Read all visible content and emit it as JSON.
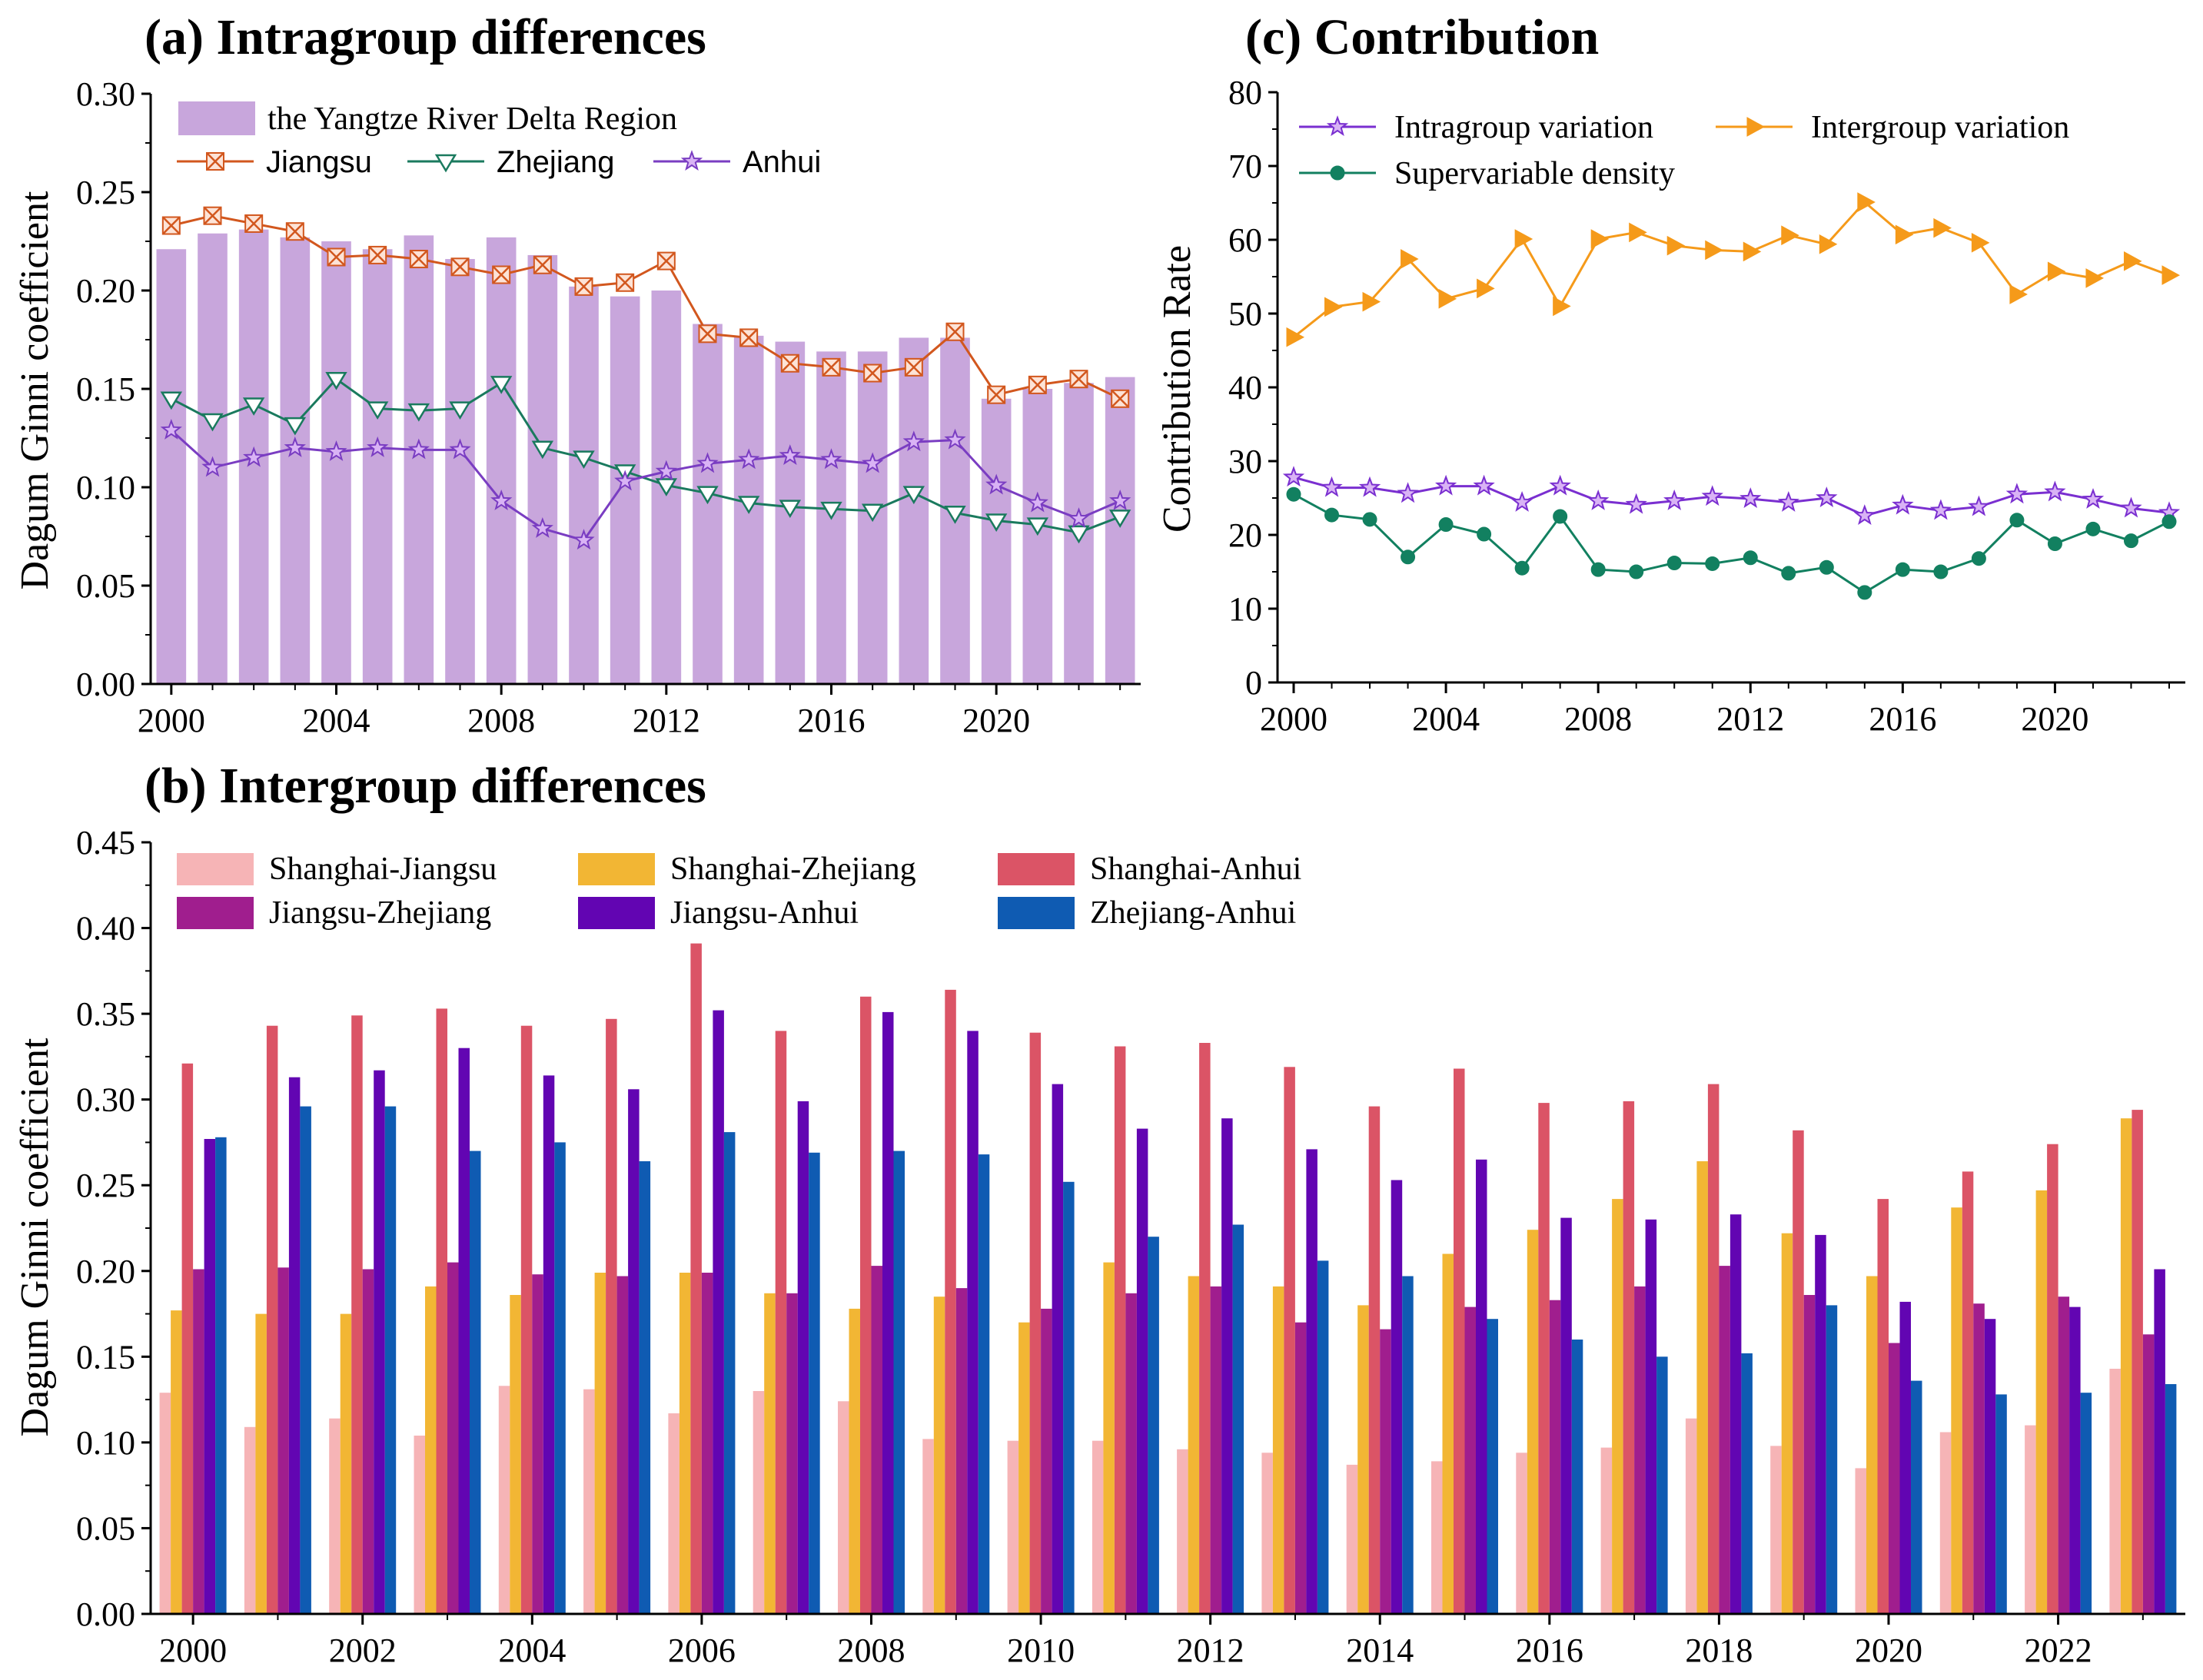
{
  "chart_data": [
    {
      "id": "a",
      "type": "bar+line",
      "title": "(a) Intragroup differences",
      "xlabel": "",
      "ylabel": "Dagum Ginni coefficient",
      "ylim": [
        0,
        0.3
      ],
      "yticks": [
        "0.00",
        "0.05",
        "0.10",
        "0.15",
        "0.20",
        "0.25",
        "0.30"
      ],
      "xticks": [
        "2000",
        "2004",
        "2008",
        "2012",
        "2016",
        "2020"
      ],
      "years": [
        2000,
        2001,
        2002,
        2003,
        2004,
        2005,
        2006,
        2007,
        2008,
        2009,
        2010,
        2011,
        2012,
        2013,
        2014,
        2015,
        2016,
        2017,
        2018,
        2019,
        2020,
        2021,
        2022,
        2023
      ],
      "bar_series": {
        "name": "the Yangtze River Delta Region",
        "color": "#c8a6dc",
        "values": [
          0.221,
          0.229,
          0.231,
          0.227,
          0.225,
          0.221,
          0.228,
          0.216,
          0.227,
          0.218,
          0.202,
          0.197,
          0.2,
          0.183,
          0.177,
          0.174,
          0.169,
          0.169,
          0.176,
          0.176,
          0.145,
          0.15,
          0.153,
          0.156
        ]
      },
      "line_series": [
        {
          "name": "Jiangsu",
          "color": "#d2571e",
          "marker": "cross",
          "values": [
            0.233,
            0.238,
            0.234,
            0.23,
            0.217,
            0.218,
            0.216,
            0.212,
            0.208,
            0.213,
            0.202,
            0.204,
            0.215,
            0.178,
            0.176,
            0.163,
            0.161,
            0.158,
            0.161,
            0.179,
            0.147,
            0.152,
            0.155,
            0.145
          ]
        },
        {
          "name": "Zhejiang",
          "color": "#1a7a5e",
          "marker": "triangle-down",
          "values": [
            0.145,
            0.134,
            0.142,
            0.132,
            0.155,
            0.14,
            0.139,
            0.14,
            0.153,
            0.12,
            0.115,
            0.108,
            0.101,
            0.097,
            0.092,
            0.09,
            0.089,
            0.088,
            0.097,
            0.087,
            0.083,
            0.081,
            0.077,
            0.085
          ]
        },
        {
          "name": "Anhui",
          "color": "#7a3dc2",
          "marker": "star",
          "values": [
            0.129,
            0.11,
            0.115,
            0.12,
            0.118,
            0.12,
            0.119,
            0.119,
            0.093,
            0.079,
            0.073,
            0.103,
            0.108,
            0.112,
            0.114,
            0.116,
            0.114,
            0.112,
            0.123,
            0.124,
            0.101,
            0.092,
            0.084,
            0.093
          ]
        }
      ]
    },
    {
      "id": "c",
      "type": "line",
      "title": "(c) Contribution",
      "xlabel": "",
      "ylabel": "Contribution Rate",
      "ylim": [
        0,
        80
      ],
      "yticks": [
        "0",
        "10",
        "20",
        "30",
        "40",
        "50",
        "60",
        "70",
        "80"
      ],
      "xticks": [
        "2000",
        "2004",
        "2008",
        "2012",
        "2016",
        "2020"
      ],
      "years": [
        2000,
        2001,
        2002,
        2003,
        2004,
        2005,
        2006,
        2007,
        2008,
        2009,
        2010,
        2011,
        2012,
        2013,
        2014,
        2015,
        2016,
        2017,
        2018,
        2019,
        2020,
        2021,
        2022,
        2023
      ],
      "series": [
        {
          "name": "Intragroup variation",
          "color": "#7a2fd0",
          "marker": "star",
          "values": [
            27.8,
            26.4,
            26.4,
            25.6,
            26.6,
            26.6,
            24.4,
            26.6,
            24.6,
            24.1,
            24.6,
            25.2,
            24.9,
            24.4,
            25.0,
            22.6,
            24.0,
            23.3,
            23.8,
            25.5,
            25.8,
            24.8,
            23.6,
            23.0
          ]
        },
        {
          "name": "Intergroup variation",
          "color": "#f59a1a",
          "marker": "triangle-right",
          "values": [
            46.8,
            50.9,
            51.6,
            57.4,
            52.0,
            53.4,
            60.1,
            51.0,
            60.1,
            61.0,
            59.2,
            58.6,
            58.4,
            60.6,
            59.4,
            65.1,
            60.7,
            61.6,
            59.6,
            52.6,
            55.7,
            54.8,
            57.1,
            55.2
          ]
        },
        {
          "name": "Supervariable density",
          "color": "#128060",
          "marker": "circle",
          "values": [
            25.5,
            22.7,
            22.1,
            17.0,
            21.4,
            20.1,
            15.5,
            22.5,
            15.3,
            15.0,
            16.2,
            16.1,
            16.9,
            14.8,
            15.6,
            12.2,
            15.3,
            15.0,
            16.8,
            22.0,
            18.8,
            20.8,
            19.2,
            21.8
          ]
        }
      ]
    },
    {
      "id": "b",
      "type": "bar",
      "title": "(b) Intergroup differences",
      "xlabel": "",
      "ylabel": "Dagum Ginni coefficient",
      "ylim": [
        0,
        0.45
      ],
      "yticks": [
        "0.00",
        "0.05",
        "0.10",
        "0.15",
        "0.20",
        "0.25",
        "0.30",
        "0.35",
        "0.40",
        "0.45"
      ],
      "xticks": [
        "2000",
        "2002",
        "2004",
        "2006",
        "2008",
        "2010",
        "2012",
        "2014",
        "2016",
        "2018",
        "2020",
        "2022"
      ],
      "categories": [
        "2000",
        "2001",
        "2002",
        "2003",
        "2004",
        "2005",
        "2006",
        "2007",
        "2008",
        "2009",
        "2010",
        "2011",
        "2012",
        "2013",
        "2014",
        "2015",
        "2016",
        "2017",
        "2018",
        "2019",
        "2020",
        "2021",
        "2022",
        "2023"
      ],
      "series": [
        {
          "name": "Shanghai-Jiangsu",
          "color": "#f6b4b6",
          "values": [
            0.129,
            0.109,
            0.114,
            0.104,
            0.133,
            0.131,
            0.117,
            0.13,
            0.124,
            0.102,
            0.101,
            0.101,
            0.096,
            0.094,
            0.087,
            0.089,
            0.094,
            0.097,
            0.114,
            0.098,
            0.085,
            0.106,
            0.11,
            0.143
          ]
        },
        {
          "name": "Shanghai-Zhejiang",
          "color": "#f2b634",
          "values": [
            0.177,
            0.175,
            0.175,
            0.191,
            0.186,
            0.199,
            0.199,
            0.187,
            0.178,
            0.185,
            0.17,
            0.205,
            0.197,
            0.191,
            0.18,
            0.21,
            0.224,
            0.242,
            0.264,
            0.222,
            0.197,
            0.237,
            0.247,
            0.289
          ]
        },
        {
          "name": "Shanghai-Anhui",
          "color": "#db5466",
          "values": [
            0.321,
            0.343,
            0.349,
            0.353,
            0.343,
            0.347,
            0.391,
            0.34,
            0.36,
            0.364,
            0.339,
            0.331,
            0.333,
            0.319,
            0.296,
            0.318,
            0.298,
            0.299,
            0.309,
            0.282,
            0.242,
            0.258,
            0.274,
            0.294
          ]
        },
        {
          "name": "Jiangsu-Zhejiang",
          "color": "#a01e8e",
          "values": [
            0.201,
            0.202,
            0.201,
            0.205,
            0.198,
            0.197,
            0.199,
            0.187,
            0.203,
            0.19,
            0.178,
            0.187,
            0.191,
            0.17,
            0.166,
            0.179,
            0.183,
            0.191,
            0.203,
            0.186,
            0.158,
            0.181,
            0.185,
            0.163
          ]
        },
        {
          "name": "Jiangsu-Anhui",
          "color": "#6205b2",
          "values": [
            0.277,
            0.313,
            0.317,
            0.33,
            0.314,
            0.306,
            0.352,
            0.299,
            0.351,
            0.34,
            0.309,
            0.283,
            0.289,
            0.271,
            0.253,
            0.265,
            0.231,
            0.23,
            0.233,
            0.221,
            0.182,
            0.172,
            0.179,
            0.201
          ]
        },
        {
          "name": "Zhejiang-Anhui",
          "color": "#0f5bb2",
          "values": [
            0.278,
            0.296,
            0.296,
            0.27,
            0.275,
            0.264,
            0.281,
            0.269,
            0.27,
            0.268,
            0.252,
            0.22,
            0.227,
            0.206,
            0.197,
            0.172,
            0.16,
            0.15,
            0.152,
            0.18,
            0.136,
            0.128,
            0.129,
            0.134
          ]
        }
      ]
    }
  ]
}
